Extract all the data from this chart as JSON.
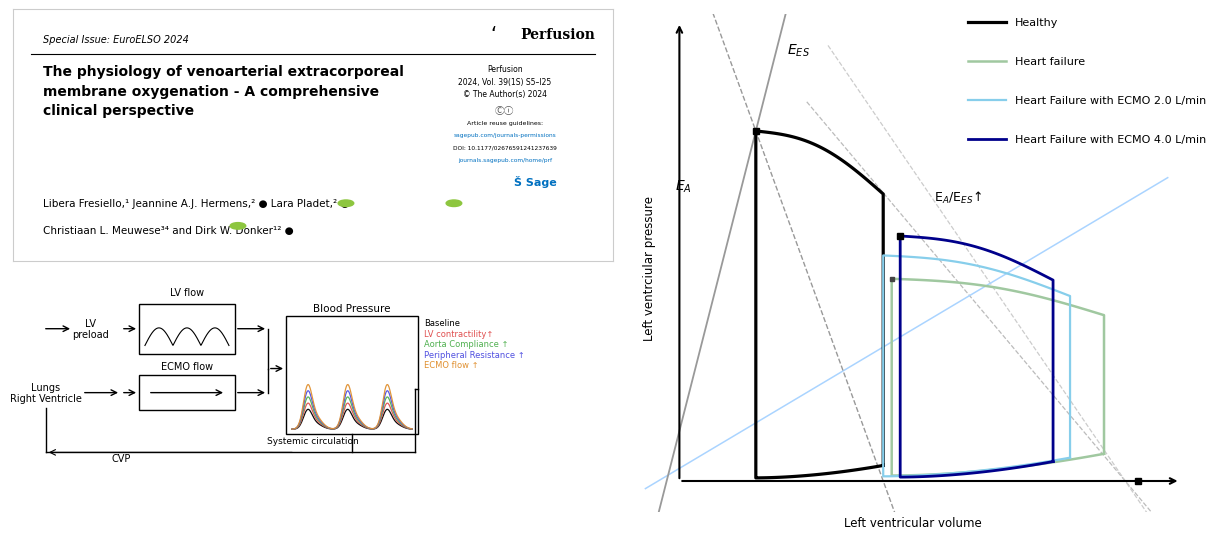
{
  "paper_title_line1": "The physiology of venoarterial extracorporeal",
  "paper_title_line2": "membrane oxygenation - A comprehensive",
  "paper_title_line3": "clinical perspective",
  "special_issue": "Special Issue: EuroELSO 2024",
  "journal_name": "Perfusion",
  "journal_info1": "Perfusion",
  "journal_info2": "2024, Vol. 39(1S) S5–I25",
  "journal_info3": "© The Author(s) 2024",
  "article_reuse": "Article reuse guidelines:",
  "sagepub_url": "sagepub.com/journals-permissions",
  "doi": "DOI: 10.1177/02676591241237639",
  "journals_url": "journals.sagepub.com/home/prf",
  "authors_line1": "Libera Fresiello,¹ Jeannine A.J. Hermens,² ● Lara Pladet,² ●",
  "authors_line2": "Christiaan L. Meuwese³⁴ and Dirk W. Donker¹² ●",
  "legend_baseline": "Baseline",
  "legend_lv": "LV contractility↑",
  "legend_aorta": "Aorta Compliance ↑",
  "legend_periph": "Peripheral Resistance ↑",
  "legend_ecmo": "ECMO flow ↑",
  "legend_lv_color": "#e05050",
  "legend_aorta_color": "#50b050",
  "legend_periph_color": "#5050e0",
  "legend_ecmo_color": "#e09030",
  "pv_legend": {
    "healthy": "Healthy",
    "hf": "Heart failure",
    "hf_ecmo2": "Heart Failure with ECMO 2.0 L/min",
    "hf_ecmo4": "Heart Failure with ECMO 4.0 L/min"
  },
  "pv_colors": {
    "healthy": "#000000",
    "hf": "#a0c8a0",
    "hf_ecmo2": "#87ceeb",
    "hf_ecmo4": "#00008b"
  },
  "xlabel_pv": "Left ventricular volume",
  "ylabel_pv": "Left ventrciular pressure",
  "ees_label": "E$_{ES}$",
  "ea_label": "E$_A$",
  "ea_ees_label": "E$_A$/E$_{ES}$↑",
  "background_color": "#ffffff"
}
